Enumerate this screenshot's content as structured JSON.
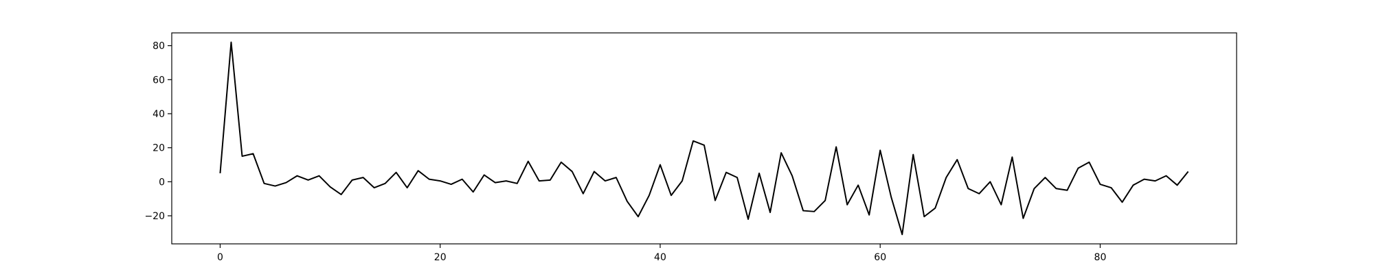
{
  "chart_data": {
    "type": "line",
    "title": "",
    "xlabel": "",
    "ylabel": "",
    "xlim": [
      -4.4,
      92.4
    ],
    "ylim": [
      -36.5,
      87.5
    ],
    "xticks": [
      0,
      20,
      40,
      60,
      80
    ],
    "yticks": [
      -20,
      0,
      20,
      40,
      60,
      80
    ],
    "grid": false,
    "legend": "none",
    "series": [
      {
        "color": "#000000",
        "x": [
          0,
          1,
          2,
          3,
          4,
          5,
          6,
          7,
          8,
          9,
          10,
          11,
          12,
          13,
          14,
          15,
          16,
          17,
          18,
          19,
          20,
          21,
          22,
          23,
          24,
          25,
          26,
          27,
          28,
          29,
          30,
          31,
          32,
          33,
          34,
          35,
          36,
          37,
          38,
          39,
          40,
          41,
          42,
          43,
          44,
          45,
          46,
          47,
          48,
          49,
          50,
          51,
          52,
          53,
          54,
          55,
          56,
          57,
          58,
          59,
          60,
          61,
          62,
          63,
          64,
          65,
          66,
          67,
          68,
          69,
          70,
          71,
          72,
          73,
          74,
          75,
          76,
          77,
          78,
          79,
          80,
          81,
          82,
          83,
          84,
          85,
          86,
          87,
          88
        ],
        "values": [
          5,
          82,
          15,
          16.5,
          -1,
          -2.5,
          -0.5,
          3.5,
          1,
          3.5,
          -3,
          -7.5,
          1,
          2.5,
          -3.5,
          -1,
          5.5,
          -3.5,
          6.5,
          1.5,
          0.5,
          -1.5,
          1.5,
          -6,
          4,
          -0.5,
          0.5,
          -1,
          12,
          0.5,
          1,
          11.5,
          6,
          -7,
          6,
          0.5,
          2.5,
          -11.5,
          -20.5,
          -8,
          10,
          -8,
          0.5,
          24,
          21.5,
          -11,
          5.5,
          2.5,
          -22,
          5,
          -18,
          17,
          3.5,
          -17,
          -17.5,
          -11,
          20.5,
          -13.5,
          -2,
          -19.5,
          18.5,
          -9,
          -31,
          16,
          -20.5,
          -15.5,
          2.5,
          13,
          -4,
          -7,
          0,
          -13.5,
          14.5,
          -21.5,
          -4,
          2.5,
          -4,
          -5,
          8,
          11.5,
          -1.5,
          -3.5,
          -12,
          -2,
          1.5,
          0.5,
          3.5,
          -2,
          6
        ]
      }
    ]
  }
}
